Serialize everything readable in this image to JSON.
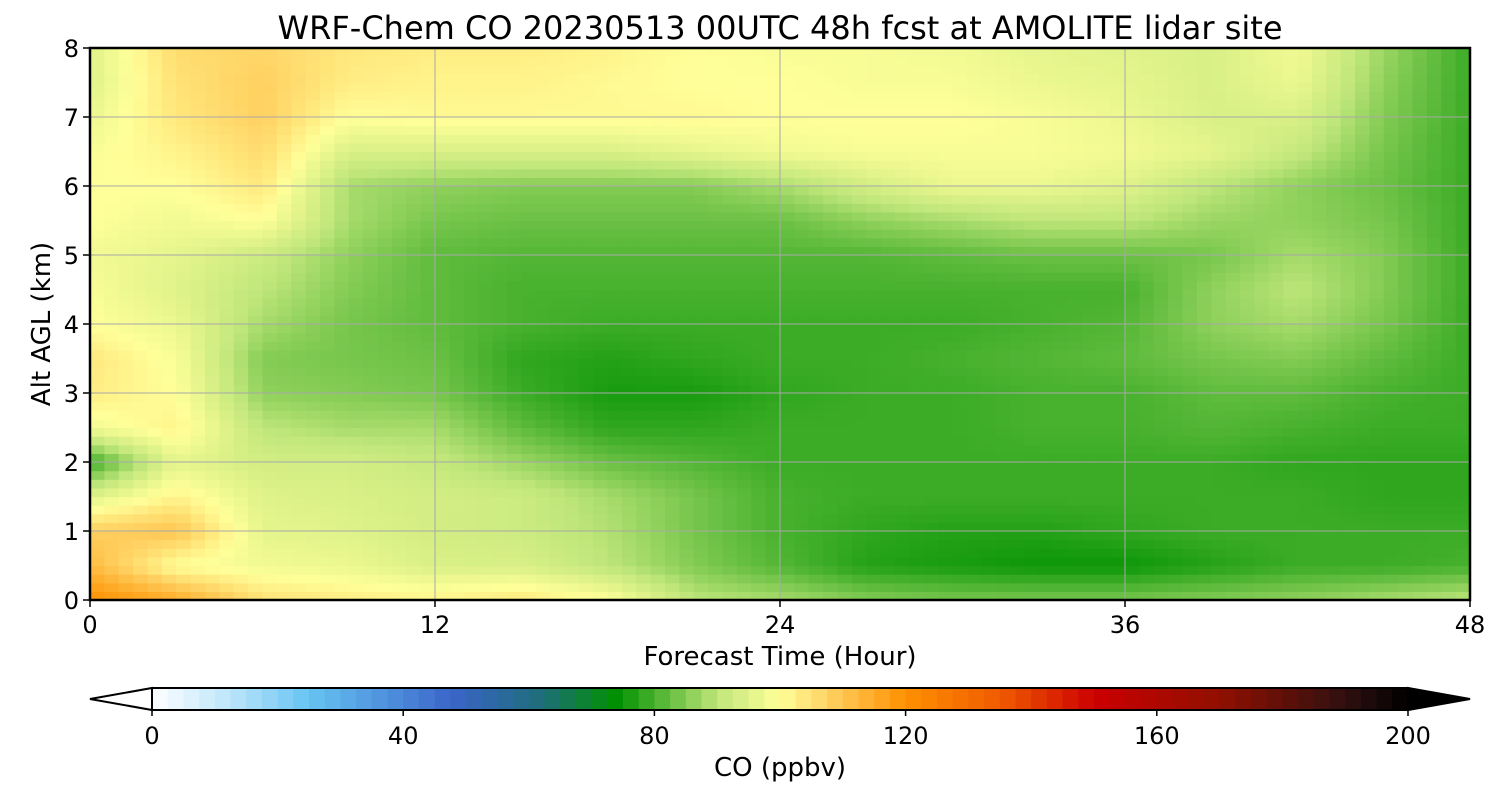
{
  "chart_data": {
    "type": "heatmap",
    "title": "WRF-Chem CO  20230513 00UTC 48h fcst at AMOLITE lidar site",
    "xlabel": "Forecast Time (Hour)",
    "ylabel": "Alt AGL (km)",
    "xlim": [
      0,
      48
    ],
    "ylim": [
      0,
      8
    ],
    "xticks": [
      0,
      12,
      24,
      36,
      48
    ],
    "yticks": [
      0,
      1,
      2,
      3,
      4,
      5,
      6,
      7,
      8
    ],
    "grid": true,
    "x": [
      0,
      3,
      6,
      9,
      12,
      15,
      18,
      21,
      24,
      27,
      30,
      33,
      36,
      39,
      42,
      45,
      48
    ],
    "y": [
      0,
      0.5,
      1,
      1.5,
      2,
      2.5,
      3,
      3.5,
      4,
      4.5,
      5,
      5.5,
      6,
      6.5,
      7,
      7.5,
      8
    ],
    "values": [
      [
        120,
        115,
        105,
        103,
        102,
        104,
        100,
        90,
        88,
        85,
        84,
        84,
        84,
        85,
        86,
        88,
        90
      ],
      [
        112,
        100,
        98,
        97,
        94,
        94,
        90,
        85,
        81,
        77,
        76,
        75,
        75,
        77,
        79,
        79,
        80
      ],
      [
        108,
        110,
        96,
        95,
        93,
        92,
        89,
        84,
        80,
        78,
        77,
        77,
        78,
        79,
        79,
        79,
        79
      ],
      [
        95,
        102,
        95,
        94,
        93,
        92,
        88,
        84,
        80,
        79,
        79,
        79,
        79,
        79,
        79,
        78,
        78
      ],
      [
        79,
        96,
        93,
        93,
        91,
        87,
        83,
        81,
        79,
        79,
        79,
        79,
        79,
        79,
        78,
        78,
        78
      ],
      [
        98,
        102,
        90,
        88,
        88,
        82,
        78,
        78,
        79,
        79,
        79,
        80,
        80,
        81,
        80,
        79,
        79
      ],
      [
        103,
        100,
        86,
        85,
        84,
        79,
        76,
        76,
        78,
        79,
        79,
        80,
        80,
        82,
        82,
        80,
        79
      ],
      [
        104,
        99,
        85,
        84,
        83,
        78,
        77,
        78,
        79,
        79,
        80,
        81,
        82,
        84,
        85,
        82,
        79
      ],
      [
        100,
        97,
        88,
        84,
        82,
        80,
        79,
        79,
        79,
        79,
        79,
        80,
        81,
        86,
        88,
        84,
        79
      ],
      [
        99,
        95,
        90,
        85,
        82,
        80,
        80,
        80,
        80,
        80,
        80,
        80,
        80,
        86,
        90,
        85,
        79
      ],
      [
        98,
        96,
        92,
        86,
        82,
        81,
        81,
        81,
        81,
        81,
        82,
        83,
        83,
        84,
        88,
        85,
        79
      ],
      [
        100,
        98,
        100,
        88,
        84,
        83,
        83,
        83,
        83,
        86,
        88,
        90,
        90,
        87,
        86,
        84,
        79
      ],
      [
        100,
        100,
        104,
        88,
        86,
        85,
        85,
        85,
        88,
        93,
        97,
        97,
        95,
        90,
        86,
        83,
        79
      ],
      [
        99,
        102,
        106,
        94,
        94,
        94,
        94,
        96,
        98,
        99,
        99,
        99,
        98,
        96,
        91,
        84,
        79
      ],
      [
        97,
        104,
        108,
        100,
        101,
        101,
        101,
        101,
        100,
        100,
        100,
        99,
        97,
        94,
        94,
        85,
        79
      ],
      [
        95,
        105,
        108,
        103,
        102,
        102,
        101,
        100,
        100,
        99,
        99,
        97,
        96,
        94,
        97,
        86,
        79
      ],
      [
        95,
        106,
        107,
        104,
        103,
        103,
        102,
        100,
        99,
        99,
        98,
        96,
        95,
        94,
        98,
        87,
        79
      ]
    ],
    "colorbar": {
      "label": "CO  (ppbv)",
      "min": 0,
      "max": 200,
      "ticks": [
        0,
        40,
        80,
        120,
        160,
        200
      ],
      "extend": "both",
      "placement": "bottom",
      "stops": [
        {
          "v": 0,
          "c": "#ffffff"
        },
        {
          "v": 12,
          "c": "#bfe6fb"
        },
        {
          "v": 25,
          "c": "#66c4f2"
        },
        {
          "v": 48,
          "c": "#3a64c8"
        },
        {
          "v": 62,
          "c": "#1e6e7a"
        },
        {
          "v": 74,
          "c": "#009100"
        },
        {
          "v": 90,
          "c": "#bfe67a"
        },
        {
          "v": 100,
          "c": "#ffff99"
        },
        {
          "v": 108,
          "c": "#ffd060"
        },
        {
          "v": 120,
          "c": "#ff9000"
        },
        {
          "v": 135,
          "c": "#f05a00"
        },
        {
          "v": 150,
          "c": "#cc0000"
        },
        {
          "v": 170,
          "c": "#901000"
        },
        {
          "v": 190,
          "c": "#301010"
        },
        {
          "v": 200,
          "c": "#000000"
        }
      ]
    }
  }
}
